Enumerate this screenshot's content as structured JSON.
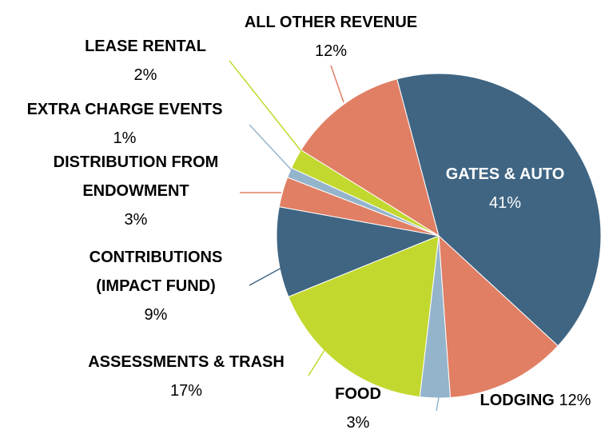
{
  "chart_data": {
    "type": "pie",
    "categories": [
      "GATES & AUTO",
      "LODGING",
      "FOOD",
      "ASSESSMENTS & TRASH",
      "CONTRIBUTIONS (IMPACT FUND)",
      "DISTRIBUTION FROM ENDOWMENT",
      "EXTRA CHARGE EVENTS",
      "LEASE RENTAL",
      "ALL OTHER REVENUE"
    ],
    "values": [
      41,
      12,
      3,
      17,
      9,
      3,
      1,
      2,
      12
    ],
    "value_labels": [
      "41%",
      "12%",
      "3%",
      "17%",
      "9%",
      "3%",
      "1%",
      "2%",
      "12%"
    ],
    "colors": [
      "#3f6583",
      "#e07f64",
      "#94b4cb",
      "#c2d82e",
      "#3f6583",
      "#e07f64",
      "#94b4cb",
      "#c2d82e",
      "#e07f64"
    ]
  }
}
